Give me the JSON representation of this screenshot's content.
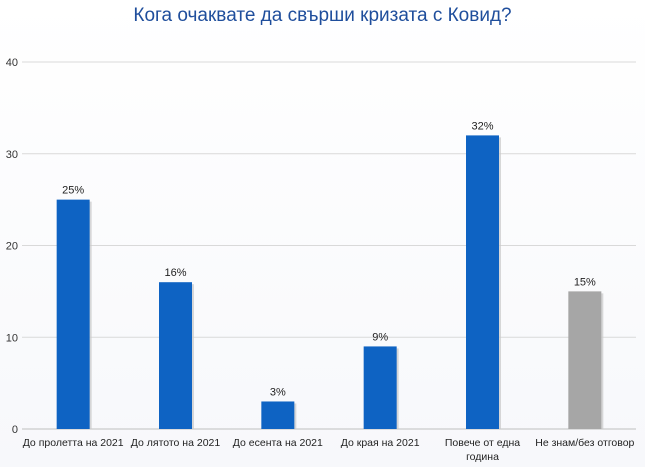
{
  "chart_data": {
    "type": "bar",
    "title": "Кога очаквате да свърши кризата с Ковид?",
    "categories": [
      [
        "До пролетта на 2021"
      ],
      [
        "До лятото на 2021"
      ],
      [
        "До есента на 2021"
      ],
      [
        "До края на 2021"
      ],
      [
        "Повече от една",
        "година"
      ],
      [
        "Не знам/без отговор"
      ]
    ],
    "values": [
      25,
      16,
      3,
      9,
      32,
      15
    ],
    "data_labels": [
      "25%",
      "16%",
      "3%",
      "9%",
      "32%",
      "15%"
    ],
    "bar_colors": [
      "#0e63c3",
      "#0e63c3",
      "#0e63c3",
      "#0e63c3",
      "#0e63c3",
      "#a6a6a6"
    ],
    "ylim": [
      0,
      40
    ],
    "yticks": [
      0,
      10,
      20,
      30,
      40
    ],
    "grid": true,
    "xlabel": "",
    "ylabel": ""
  }
}
